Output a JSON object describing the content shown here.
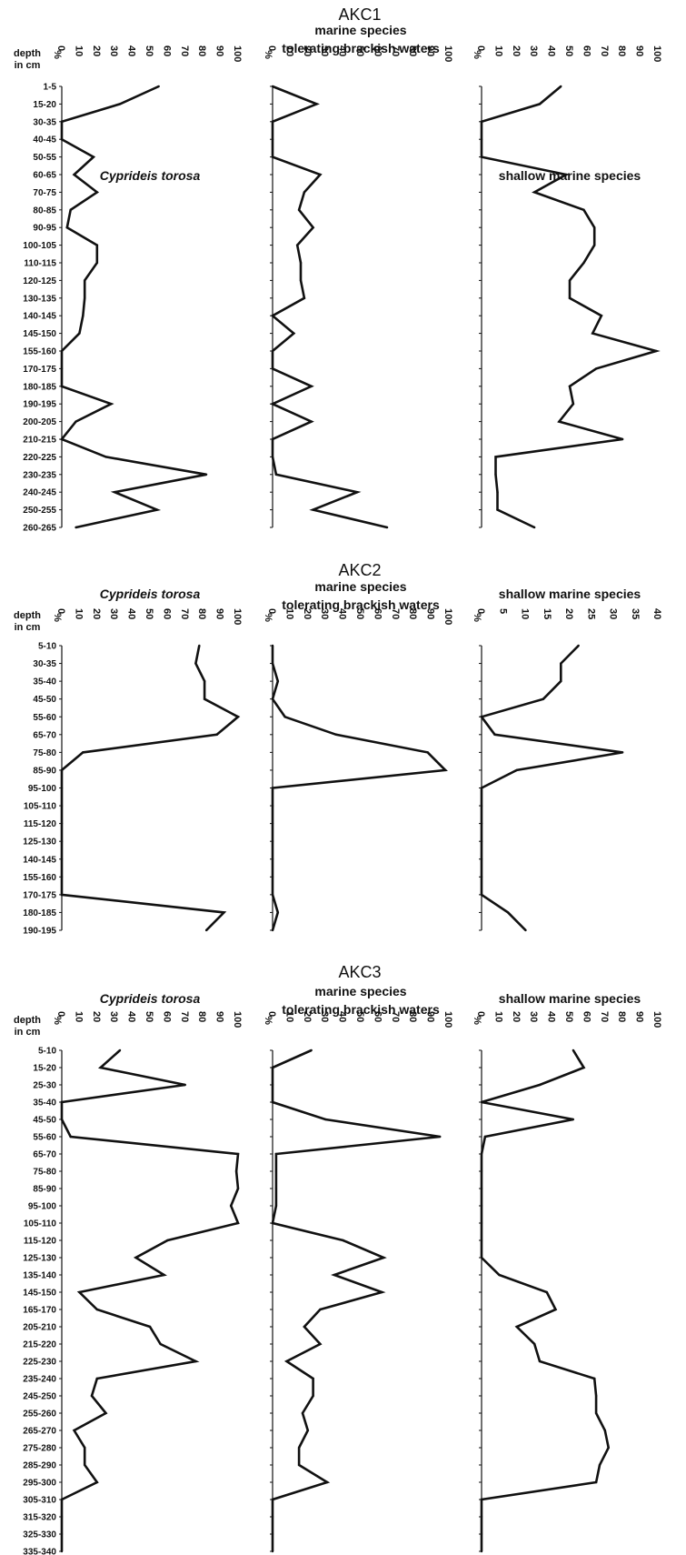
{
  "figure": {
    "background": "#ffffff",
    "ink": "#111111"
  },
  "chart_data": [
    {
      "type": "line",
      "title": "AKC1",
      "depth_header": [
        "depth",
        "in cm"
      ],
      "unit_label": "%",
      "depths": [
        "1-5",
        "15-20",
        "30-35",
        "40-45",
        "50-55",
        "60-65",
        "70-75",
        "80-85",
        "90-95",
        "100-105",
        "110-115",
        "120-125",
        "130-135",
        "140-145",
        "145-150",
        "155-160",
        "170-175",
        "180-185",
        "190-195",
        "200-205",
        "210-215",
        "220-225",
        "230-235",
        "240-245",
        "250-255",
        "260-265"
      ],
      "series": [
        {
          "name": "Cyprideis torosa",
          "title_lines": [
            "Cyprideis torosa"
          ],
          "italic": true,
          "ticks": [
            "0",
            "10",
            "20",
            "30",
            "40",
            "50",
            "60",
            "70",
            "80",
            "90",
            "100"
          ],
          "xlim": [
            0,
            100
          ],
          "values": [
            55,
            33,
            0,
            0,
            18,
            7,
            20,
            5,
            3,
            20,
            20,
            13,
            13,
            12,
            10,
            0,
            0,
            0,
            28,
            8,
            0,
            25,
            82,
            30,
            54,
            8
          ]
        },
        {
          "name": "marine species tolerating brackish waters",
          "title_lines": [
            "marine species",
            "tolerating brackish waters"
          ],
          "italic": false,
          "ticks": [
            "0",
            "10",
            "20",
            "30",
            "40",
            "50",
            "60",
            "70",
            "80",
            "90",
            "100"
          ],
          "xlim": [
            0,
            100
          ],
          "values": [
            0,
            25,
            0,
            0,
            0,
            27,
            18,
            15,
            23,
            14,
            16,
            16,
            18,
            0,
            12,
            0,
            0,
            22,
            0,
            22,
            0,
            0,
            2,
            48,
            23,
            65
          ]
        },
        {
          "name": "shallow marine species",
          "title_lines": [
            "shallow marine species"
          ],
          "italic": false,
          "ticks": [
            "0",
            "10",
            "20",
            "30",
            "40",
            "50",
            "60",
            "70",
            "80",
            "90",
            "100"
          ],
          "xlim": [
            0,
            100
          ],
          "values": [
            45,
            33,
            0,
            0,
            0,
            48,
            30,
            58,
            64,
            64,
            58,
            50,
            50,
            68,
            63,
            99,
            65,
            50,
            52,
            44,
            80,
            8,
            8,
            9,
            9,
            30
          ]
        }
      ]
    },
    {
      "type": "line",
      "title": "AKC2",
      "depth_header": [
        "depth",
        "in cm"
      ],
      "unit_label": "%",
      "depths": [
        "5-10",
        "30-35",
        "35-40",
        "45-50",
        "55-60",
        "65-70",
        "75-80",
        "85-90",
        "95-100",
        "105-110",
        "115-120",
        "125-130",
        "140-145",
        "155-160",
        "170-175",
        "180-185",
        "190-195"
      ],
      "series": [
        {
          "name": "Cyprideis torosa",
          "title_lines": [
            "Cyprideis torosa"
          ],
          "italic": true,
          "ticks": [
            "0",
            "10",
            "20",
            "30",
            "40",
            "50",
            "60",
            "70",
            "80",
            "90",
            "100"
          ],
          "xlim": [
            0,
            100
          ],
          "values": [
            78,
            76,
            81,
            81,
            100,
            88,
            12,
            0,
            0,
            0,
            0,
            0,
            0,
            0,
            0,
            92,
            82
          ]
        },
        {
          "name": "marine species tolerating brackish waters",
          "title_lines": [
            "marine species",
            "tolerating brackish waters"
          ],
          "italic": false,
          "ticks": [
            "0",
            "10",
            "20",
            "30",
            "40",
            "50",
            "60",
            "70",
            "80",
            "90",
            "100"
          ],
          "xlim": [
            0,
            100
          ],
          "values": [
            0,
            0,
            3,
            0,
            7,
            36,
            88,
            98,
            0,
            0,
            0,
            0,
            0,
            0,
            0,
            3,
            0
          ]
        },
        {
          "name": "shallow marine species",
          "title_lines": [
            "shallow marine species"
          ],
          "italic": false,
          "ticks": [
            "0",
            "5",
            "10",
            "15",
            "20",
            "25",
            "30",
            "35",
            "40"
          ],
          "xlim": [
            0,
            40
          ],
          "values": [
            22,
            18,
            18,
            14,
            0,
            3,
            32,
            8,
            0,
            0,
            0,
            0,
            0,
            0,
            0,
            6,
            10
          ]
        }
      ]
    },
    {
      "type": "line",
      "title": "AKC3",
      "depth_header": [
        "depth",
        "in cm"
      ],
      "unit_label": "%",
      "depths": [
        "5-10",
        "15-20",
        "25-30",
        "35-40",
        "45-50",
        "55-60",
        "65-70",
        "75-80",
        "85-90",
        "95-100",
        "105-110",
        "115-120",
        "125-130",
        "135-140",
        "145-150",
        "165-170",
        "205-210",
        "215-220",
        "225-230",
        "235-240",
        "245-250",
        "255-260",
        "265-270",
        "275-280",
        "285-290",
        "295-300",
        "305-310",
        "315-320",
        "325-330",
        "335-340"
      ],
      "series": [
        {
          "name": "Cyprideis torosa",
          "title_lines": [
            "Cyprideis torosa"
          ],
          "italic": true,
          "ticks": [
            "0",
            "10",
            "20",
            "30",
            "40",
            "50",
            "60",
            "70",
            "80",
            "90",
            "100"
          ],
          "xlim": [
            0,
            100
          ],
          "values": [
            33,
            22,
            70,
            0,
            0,
            5,
            100,
            99,
            100,
            96,
            100,
            60,
            42,
            58,
            10,
            20,
            50,
            56,
            76,
            20,
            17,
            25,
            7,
            13,
            13,
            20,
            0,
            0,
            0,
            0
          ]
        },
        {
          "name": "marine species tolerating brackish waters",
          "title_lines": [
            "marine species",
            "tolerating brackish waters"
          ],
          "italic": false,
          "ticks": [
            "0",
            "10",
            "20",
            "30",
            "40",
            "50",
            "60",
            "70",
            "80",
            "90",
            "100"
          ],
          "xlim": [
            0,
            100
          ],
          "values": [
            22,
            0,
            0,
            0,
            30,
            95,
            2,
            2,
            2,
            2,
            0,
            40,
            63,
            35,
            62,
            27,
            18,
            27,
            8,
            23,
            23,
            17,
            20,
            15,
            15,
            31,
            0,
            0,
            0,
            0
          ]
        },
        {
          "name": "shallow marine species",
          "title_lines": [
            "shallow marine species"
          ],
          "italic": false,
          "ticks": [
            "0",
            "10",
            "20",
            "30",
            "40",
            "50",
            "60",
            "70",
            "80",
            "90",
            "100"
          ],
          "xlim": [
            0,
            100
          ],
          "values": [
            52,
            58,
            33,
            0,
            52,
            2,
            0,
            0,
            0,
            0,
            0,
            0,
            0,
            10,
            37,
            42,
            20,
            30,
            33,
            64,
            65,
            65,
            70,
            72,
            67,
            65,
            0,
            0,
            0,
            0
          ]
        }
      ]
    }
  ]
}
